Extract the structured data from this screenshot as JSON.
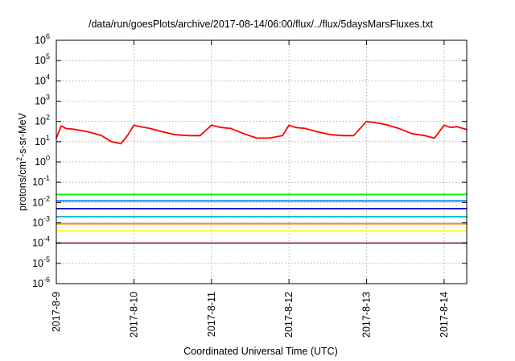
{
  "chart_data": {
    "type": "line",
    "title": "/data/run/goesPlots/archive/2017-08-14/06:00/flux/../flux/5daysMarsFluxes.txt",
    "xlabel": "Coordinated Universal Time (UTC)",
    "ylabel": "protons/cm²-s-sr-MeV",
    "ylabel_parts": {
      "pre": "protons/cm",
      "sup": "2",
      "post": "-s-sr-MeV"
    },
    "yscale": "log",
    "ylim": [
      1e-06,
      1000000.0
    ],
    "xlim": [
      "2017-08-09T00:00",
      "2017-08-14T07:00"
    ],
    "grid": true,
    "x_ticks": [
      "2017-8-9",
      "2017-8-10",
      "2017-8-11",
      "2017-8-12",
      "2017-8-13",
      "2017-8-14"
    ],
    "y_ticks": [
      {
        "base": "10",
        "exp": "-6"
      },
      {
        "base": "10",
        "exp": "-5"
      },
      {
        "base": "10",
        "exp": "-4"
      },
      {
        "base": "10",
        "exp": "-3"
      },
      {
        "base": "10",
        "exp": "-2"
      },
      {
        "base": "10",
        "exp": "-1"
      },
      {
        "base": "10",
        "exp": "0"
      },
      {
        "base": "10",
        "exp": "1"
      },
      {
        "base": "10",
        "exp": "2"
      },
      {
        "base": "10",
        "exp": "3"
      },
      {
        "base": "10",
        "exp": "4"
      },
      {
        "base": "10",
        "exp": "5"
      },
      {
        "base": "10",
        "exp": "6"
      }
    ],
    "series": [
      {
        "color": "#ff0000",
        "x": [
          "2017-08-09T00:00",
          "2017-08-09T01:30",
          "2017-08-09T03:00",
          "2017-08-09T06:00",
          "2017-08-09T10:00",
          "2017-08-09T14:00",
          "2017-08-09T17:00",
          "2017-08-09T20:00",
          "2017-08-09T22:00",
          "2017-08-10T00:00",
          "2017-08-10T02:00",
          "2017-08-10T05:00",
          "2017-08-10T09:00",
          "2017-08-10T13:00",
          "2017-08-10T17:00",
          "2017-08-10T20:30",
          "2017-08-11T00:00",
          "2017-08-11T03:00",
          "2017-08-11T06:00",
          "2017-08-11T10:00",
          "2017-08-11T14:00",
          "2017-08-11T18:00",
          "2017-08-11T22:00",
          "2017-08-12T00:00",
          "2017-08-12T02:00",
          "2017-08-12T05:00",
          "2017-08-12T09:00",
          "2017-08-12T13:00",
          "2017-08-12T17:00",
          "2017-08-12T20:00",
          "2017-08-13T00:00",
          "2017-08-13T03:00",
          "2017-08-13T06:00",
          "2017-08-13T10:00",
          "2017-08-13T14:00",
          "2017-08-13T18:00",
          "2017-08-13T21:00",
          "2017-08-14T00:00",
          "2017-08-14T02:00",
          "2017-08-14T04:00",
          "2017-08-14T07:00"
        ],
        "y": [
          15,
          60,
          45,
          40,
          30,
          20,
          10,
          8,
          20,
          65,
          55,
          45,
          30,
          22,
          20,
          20,
          65,
          50,
          45,
          25,
          15,
          15,
          20,
          65,
          50,
          45,
          30,
          22,
          20,
          20,
          100,
          85,
          70,
          45,
          25,
          20,
          15,
          65,
          50,
          55,
          40
        ]
      },
      {
        "color": "#00ff00",
        "x": [
          "2017-08-09T00:00",
          "2017-08-14T07:00"
        ],
        "y": [
          0.025,
          0.025
        ]
      },
      {
        "color": "#0080ff",
        "x": [
          "2017-08-09T00:00",
          "2017-08-14T07:00"
        ],
        "y": [
          0.012,
          0.012
        ]
      },
      {
        "color": "#0000cd",
        "x": [
          "2017-08-09T00:00",
          "2017-08-14T07:00"
        ],
        "y": [
          0.005,
          0.005
        ]
      },
      {
        "color": "#00c0c0",
        "x": [
          "2017-08-09T00:00",
          "2017-08-14T07:00"
        ],
        "y": [
          0.002,
          0.002
        ]
      },
      {
        "color": "#ff8c00",
        "x": [
          "2017-08-09T00:00",
          "2017-08-14T07:00"
        ],
        "y": [
          0.0009,
          0.0009
        ]
      },
      {
        "color": "#ffff00",
        "x": [
          "2017-08-09T00:00",
          "2017-08-14T07:00"
        ],
        "y": [
          0.0004,
          0.0004
        ]
      },
      {
        "color": "#993366",
        "x": [
          "2017-08-09T00:00",
          "2017-08-14T07:00"
        ],
        "y": [
          0.0001,
          0.0001
        ]
      }
    ]
  }
}
